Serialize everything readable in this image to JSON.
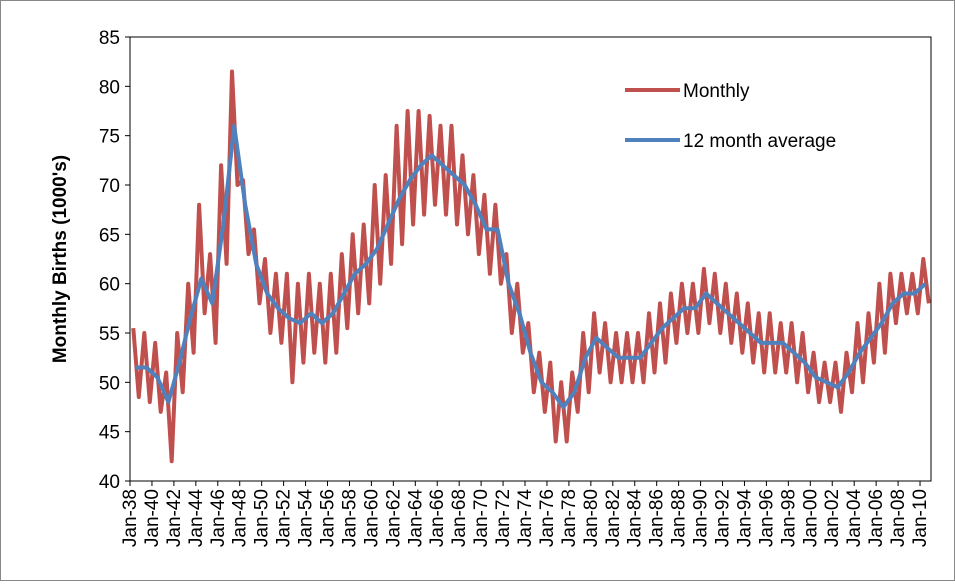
{
  "chart_data": {
    "type": "line",
    "ylabel": "Monthly Births (1000's)",
    "xlim": [
      1938,
      2011
    ],
    "ylim": [
      40,
      85
    ],
    "yticks": [
      40,
      45,
      50,
      55,
      60,
      65,
      70,
      75,
      80,
      85
    ],
    "xticks": [
      {
        "value": 1938,
        "label": "Jan-38"
      },
      {
        "value": 1940,
        "label": "Jan-40"
      },
      {
        "value": 1942,
        "label": "Jan-42"
      },
      {
        "value": 1944,
        "label": "Jan-44"
      },
      {
        "value": 1946,
        "label": "Jan-46"
      },
      {
        "value": 1948,
        "label": "Jan-48"
      },
      {
        "value": 1950,
        "label": "Jan-50"
      },
      {
        "value": 1952,
        "label": "Jan-52"
      },
      {
        "value": 1954,
        "label": "Jan-54"
      },
      {
        "value": 1956,
        "label": "Jan-56"
      },
      {
        "value": 1958,
        "label": "Jan-58"
      },
      {
        "value": 1960,
        "label": "Jan-60"
      },
      {
        "value": 1962,
        "label": "Jan-62"
      },
      {
        "value": 1964,
        "label": "Jan-64"
      },
      {
        "value": 1966,
        "label": "Jan-66"
      },
      {
        "value": 1968,
        "label": "Jan-68"
      },
      {
        "value": 1970,
        "label": "Jan-70"
      },
      {
        "value": 1972,
        "label": "Jan-72"
      },
      {
        "value": 1974,
        "label": "Jan-74"
      },
      {
        "value": 1976,
        "label": "Jan-76"
      },
      {
        "value": 1978,
        "label": "Jan-78"
      },
      {
        "value": 1980,
        "label": "Jan-80"
      },
      {
        "value": 1982,
        "label": "Jan-82"
      },
      {
        "value": 1984,
        "label": "Jan-84"
      },
      {
        "value": 1986,
        "label": "Jan-86"
      },
      {
        "value": 1988,
        "label": "Jan-88"
      },
      {
        "value": 1990,
        "label": "Jan-90"
      },
      {
        "value": 1992,
        "label": "Jan-92"
      },
      {
        "value": 1994,
        "label": "Jan-94"
      },
      {
        "value": 1996,
        "label": "Jan-96"
      },
      {
        "value": 1998,
        "label": "Jan-98"
      },
      {
        "value": 2000,
        "label": "Jan-00"
      },
      {
        "value": 2002,
        "label": "Jan-02"
      },
      {
        "value": 2004,
        "label": "Jan-04"
      },
      {
        "value": 2006,
        "label": "Jan-06"
      },
      {
        "value": 2008,
        "label": "Jan-08"
      },
      {
        "value": 2010,
        "label": "Jan-10"
      }
    ],
    "legend": "upper right",
    "series": [
      {
        "name": "Monthly",
        "color": "#c0504d",
        "width": 4,
        "x": [
          1938.3,
          1938.8,
          1939.3,
          1939.8,
          1940.3,
          1940.8,
          1941.3,
          1941.8,
          1942.3,
          1942.8,
          1943.3,
          1943.8,
          1944.3,
          1944.8,
          1945.3,
          1945.8,
          1946.3,
          1946.8,
          1947.3,
          1947.8,
          1948.3,
          1948.8,
          1949.3,
          1949.8,
          1950.3,
          1950.8,
          1951.3,
          1951.8,
          1952.3,
          1952.8,
          1953.3,
          1953.8,
          1954.3,
          1954.8,
          1955.3,
          1955.8,
          1956.3,
          1956.8,
          1957.3,
          1957.8,
          1958.3,
          1958.8,
          1959.3,
          1959.8,
          1960.3,
          1960.8,
          1961.3,
          1961.8,
          1962.3,
          1962.8,
          1963.3,
          1963.8,
          1964.3,
          1964.8,
          1965.3,
          1965.8,
          1966.3,
          1966.8,
          1967.3,
          1967.8,
          1968.3,
          1968.8,
          1969.3,
          1969.8,
          1970.3,
          1970.8,
          1971.3,
          1971.8,
          1972.3,
          1972.8,
          1973.3,
          1973.8,
          1974.3,
          1974.8,
          1975.3,
          1975.8,
          1976.3,
          1976.8,
          1977.3,
          1977.8,
          1978.3,
          1978.8,
          1979.3,
          1979.8,
          1980.3,
          1980.8,
          1981.3,
          1981.8,
          1982.3,
          1982.8,
          1983.3,
          1983.8,
          1984.3,
          1984.8,
          1985.3,
          1985.8,
          1986.3,
          1986.8,
          1987.3,
          1987.8,
          1988.3,
          1988.8,
          1989.3,
          1989.8,
          1990.3,
          1990.8,
          1991.3,
          1991.8,
          1992.3,
          1992.8,
          1993.3,
          1993.8,
          1994.3,
          1994.8,
          1995.3,
          1995.8,
          1996.3,
          1996.8,
          1997.3,
          1997.8,
          1998.3,
          1998.8,
          1999.3,
          1999.8,
          2000.3,
          2000.8,
          2001.3,
          2001.8,
          2002.3,
          2002.8,
          2003.3,
          2003.8,
          2004.3,
          2004.8,
          2005.3,
          2005.8,
          2006.3,
          2006.8,
          2007.3,
          2007.8,
          2008.3,
          2008.8,
          2009.3,
          2009.8,
          2010.3,
          2010.8
        ],
        "values": [
          55.5,
          48.5,
          55,
          48,
          54,
          47,
          51,
          42,
          55,
          49,
          60,
          53,
          68,
          57,
          63,
          54,
          72,
          62,
          81.5,
          70,
          70.5,
          63,
          65.5,
          58,
          62.5,
          55,
          61,
          54,
          61,
          50,
          60,
          52,
          61,
          53,
          60,
          52,
          61,
          53,
          63,
          55.5,
          65,
          57,
          66,
          58,
          70,
          60,
          71,
          62,
          76,
          64,
          77.5,
          66,
          77.5,
          67,
          77,
          68,
          76,
          67,
          76,
          66,
          73,
          65,
          71,
          63,
          69,
          61,
          68,
          60,
          63,
          55,
          60,
          53,
          56,
          49,
          53,
          47,
          52,
          44,
          50,
          44,
          51,
          47,
          55,
          49,
          57,
          51,
          56,
          50,
          55,
          50,
          55,
          50,
          55,
          50,
          57,
          51,
          58,
          52,
          59,
          54,
          60,
          55,
          60,
          55,
          61.5,
          56,
          61,
          55,
          60,
          54,
          59,
          53,
          58,
          52,
          57,
          51,
          57,
          51,
          56,
          51,
          56,
          50,
          55,
          49,
          53,
          48,
          52,
          48,
          52,
          47,
          53,
          49,
          56,
          50,
          57,
          52,
          60,
          53,
          61,
          56,
          61,
          57,
          61,
          57,
          62.5,
          58
        ]
      },
      {
        "name": "12 month average",
        "color": "#4f81bd",
        "width": 4,
        "x": [
          1938.5,
          1939.5,
          1940.5,
          1941.5,
          1942.5,
          1943.5,
          1944.5,
          1945.5,
          1946.5,
          1947.5,
          1948.5,
          1949.5,
          1950.5,
          1951.5,
          1952.5,
          1953.5,
          1954.5,
          1955.5,
          1956.5,
          1957.5,
          1958.5,
          1959.5,
          1960.5,
          1961.5,
          1962.5,
          1963.5,
          1964.5,
          1965.5,
          1966.5,
          1967.5,
          1968.5,
          1969.5,
          1970.5,
          1971.5,
          1972.5,
          1973.5,
          1974.5,
          1975.5,
          1976.5,
          1977.5,
          1978.5,
          1979.5,
          1980.5,
          1981.5,
          1982.5,
          1983.5,
          1984.5,
          1985.5,
          1986.5,
          1987.5,
          1988.5,
          1989.5,
          1990.5,
          1991.5,
          1992.5,
          1993.5,
          1994.5,
          1995.5,
          1996.5,
          1997.5,
          1998.5,
          1999.5,
          2000.5,
          2001.5,
          2002.5,
          2003.5,
          2004.5,
          2005.5,
          2006.5,
          2007.5,
          2008.5,
          2009.5,
          2010.5
        ],
        "values": [
          51.5,
          51.5,
          50.5,
          48,
          52,
          56.5,
          60.5,
          58,
          66,
          76,
          68,
          62,
          59,
          57.5,
          56.5,
          56,
          57,
          56,
          57,
          59,
          61,
          62,
          63.5,
          66,
          68.5,
          70.5,
          72,
          73,
          72,
          71,
          70,
          68,
          65.5,
          65.5,
          60,
          57,
          53,
          50,
          49,
          47.5,
          49,
          52.5,
          54.5,
          53.5,
          52.5,
          52.5,
          52.5,
          54,
          55.5,
          56.5,
          57.5,
          57.5,
          59,
          58,
          57,
          56,
          55,
          54,
          54,
          54,
          53,
          52,
          50.5,
          50,
          49.5,
          51,
          53,
          54.5,
          56,
          58,
          59,
          59,
          60
        ]
      }
    ]
  }
}
